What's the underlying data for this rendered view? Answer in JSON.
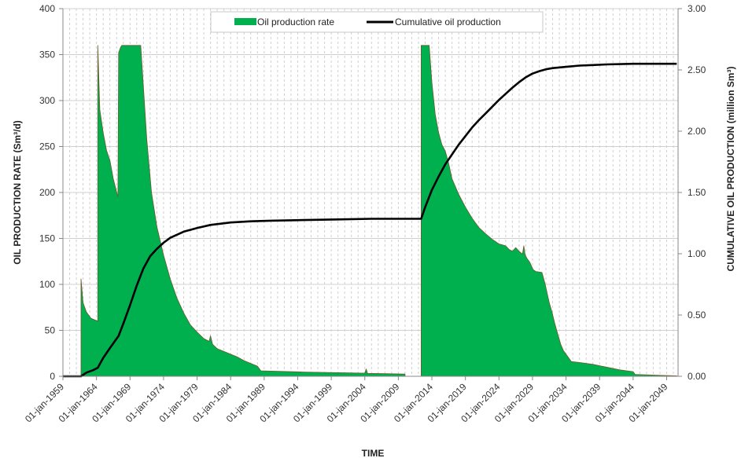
{
  "chart_data": {
    "type": "area",
    "xlabel": "TIME",
    "ylabel_left": "OIL PRODUCTION RATE (Sm³/d)",
    "ylabel_right": "CUMULATIVE OIL PRODUCTION (million Sm³)",
    "xlim": [
      1959.0,
      2050.7
    ],
    "ylim_left": [
      0,
      400
    ],
    "ylim_right": [
      0,
      3.0
    ],
    "grid": true,
    "legend_position": "top-center",
    "x_tick_values": [
      1959,
      1964,
      1969,
      1974,
      1979,
      1984,
      1989,
      1994,
      1999,
      2004,
      2009,
      2014,
      2019,
      2024,
      2029,
      2034,
      2039,
      2044,
      2049
    ],
    "x_tick_labels": [
      "01-jan-1959",
      "01-jan-1964",
      "01-jan-1969",
      "01-jan-1974",
      "01-jan-1979",
      "01-jan-1984",
      "01-jan-1989",
      "01-jan-1994",
      "01-jan-1999",
      "01-jan-2004",
      "01-jan-2009",
      "01-jan-2014",
      "01-jan-2019",
      "01-jan-2024",
      "01-jan-2029",
      "01-jan-2034",
      "01-jan-2039",
      "01-jan-2044",
      "01-jan-2049"
    ],
    "y_left_ticks": [
      0,
      50,
      100,
      150,
      200,
      250,
      300,
      350,
      400
    ],
    "y_left_tick_labels": [
      "0",
      "50",
      "100",
      "150",
      "200",
      "250",
      "300",
      "350",
      "400"
    ],
    "y_right_ticks": [
      0,
      0.5,
      1.0,
      1.5,
      2.0,
      2.5,
      3.0
    ],
    "y_right_tick_labels": [
      "0.00",
      "0.50",
      "1.00",
      "1.50",
      "2.00",
      "2.50",
      "3.00"
    ],
    "series": [
      {
        "name": "Oil production rate",
        "type": "area",
        "color": "#00b04f",
        "stroke": "#6b5a2a",
        "axis": "left",
        "segments": [
          [
            [
              1961.7,
              0
            ],
            [
              1961.7,
              106
            ],
            [
              1962.0,
              80
            ],
            [
              1962.5,
              70
            ],
            [
              1963.2,
              63
            ],
            [
              1964.2,
              60
            ],
            [
              1964.2,
              360
            ],
            [
              1964.5,
              290
            ],
            [
              1965.0,
              265
            ],
            [
              1965.5,
              246
            ],
            [
              1966.0,
              235
            ],
            [
              1966.5,
              215
            ],
            [
              1967.2,
              195
            ],
            [
              1967.3,
              352
            ],
            [
              1967.6,
              358
            ],
            [
              1967.8,
              360
            ],
            [
              1970.6,
              360
            ],
            [
              1971.5,
              258
            ],
            [
              1972.2,
              200
            ],
            [
              1973.0,
              163
            ],
            [
              1974.0,
              132
            ],
            [
              1975.0,
              106
            ],
            [
              1976.0,
              85
            ],
            [
              1977.0,
              69
            ],
            [
              1978.0,
              56
            ],
            [
              1979.0,
              48
            ],
            [
              1980.0,
              41
            ],
            [
              1980.8,
              38
            ],
            [
              1981.0,
              44
            ],
            [
              1981.3,
              35
            ],
            [
              1982.0,
              30
            ],
            [
              1983.0,
              27
            ],
            [
              1984.0,
              24
            ],
            [
              1985.0,
              21
            ],
            [
              1986.0,
              17
            ],
            [
              1987.0,
              14
            ],
            [
              1988.0,
              11
            ],
            [
              1988.5,
              6
            ],
            [
              1990.0,
              5.6
            ],
            [
              1995.0,
              4.6
            ],
            [
              2000.0,
              3.9
            ],
            [
              2004.0,
              3.4
            ],
            [
              2004.2,
              8
            ],
            [
              2004.4,
              3.2
            ],
            [
              2007.0,
              2.8
            ],
            [
              2010.0,
              2.4
            ],
            [
              2010.0,
              0
            ]
          ],
          [
            [
              2012.4,
              0
            ],
            [
              2012.4,
              360
            ],
            [
              2013.6,
              360
            ],
            [
              2014.0,
              320
            ],
            [
              2014.5,
              285
            ],
            [
              2015.0,
              265
            ],
            [
              2015.5,
              252
            ],
            [
              2016.0,
              245
            ],
            [
              2016.5,
              232
            ],
            [
              2017.0,
              215
            ],
            [
              2018.0,
              198
            ],
            [
              2019.0,
              184
            ],
            [
              2020.0,
              172
            ],
            [
              2021.0,
              162
            ],
            [
              2022.0,
              155
            ],
            [
              2023.0,
              149
            ],
            [
              2024.0,
              144
            ],
            [
              2025.0,
              142
            ],
            [
              2025.5,
              138
            ],
            [
              2026.0,
              136
            ],
            [
              2026.5,
              140
            ],
            [
              2027.0,
              136
            ],
            [
              2027.5,
              133
            ],
            [
              2027.7,
              142
            ],
            [
              2027.9,
              132
            ],
            [
              2028.2,
              128
            ],
            [
              2028.6,
              124
            ],
            [
              2029.1,
              116
            ],
            [
              2029.5,
              114
            ],
            [
              2030.4,
              113
            ],
            [
              2030.6,
              108
            ],
            [
              2030.9,
              100
            ],
            [
              2031.2,
              90
            ],
            [
              2031.5,
              80
            ],
            [
              2031.9,
              70
            ],
            [
              2032.3,
              58
            ],
            [
              2032.8,
              45
            ],
            [
              2033.2,
              35
            ],
            [
              2033.6,
              28
            ],
            [
              2034.0,
              24
            ],
            [
              2034.4,
              20
            ],
            [
              2034.8,
              16
            ],
            [
              2036.0,
              15
            ],
            [
              2038.0,
              13
            ],
            [
              2040.0,
              10
            ],
            [
              2042.0,
              7
            ],
            [
              2044.0,
              5
            ],
            [
              2044.3,
              2
            ],
            [
              2046.0,
              1.5
            ],
            [
              2048.0,
              1
            ],
            [
              2050.5,
              0.5
            ],
            [
              2050.5,
              0
            ]
          ]
        ]
      },
      {
        "name": "Cumulative oil production",
        "type": "line",
        "color": "#000000",
        "axis": "right",
        "points": [
          [
            1959.0,
            0.0
          ],
          [
            1961.7,
            0.0
          ],
          [
            1962.5,
            0.03
          ],
          [
            1963.5,
            0.05
          ],
          [
            1964.2,
            0.07
          ],
          [
            1965.0,
            0.15
          ],
          [
            1966.0,
            0.23
          ],
          [
            1967.3,
            0.33
          ],
          [
            1968.0,
            0.43
          ],
          [
            1969.0,
            0.58
          ],
          [
            1970.0,
            0.74
          ],
          [
            1971.0,
            0.88
          ],
          [
            1972.0,
            0.98
          ],
          [
            1973.0,
            1.04
          ],
          [
            1974.0,
            1.09
          ],
          [
            1975.0,
            1.13
          ],
          [
            1977.0,
            1.18
          ],
          [
            1979.0,
            1.21
          ],
          [
            1981.0,
            1.235
          ],
          [
            1984.0,
            1.255
          ],
          [
            1987.0,
            1.265
          ],
          [
            1990.0,
            1.27
          ],
          [
            1995.0,
            1.275
          ],
          [
            2000.0,
            1.28
          ],
          [
            2005.0,
            1.285
          ],
          [
            2012.4,
            1.285
          ],
          [
            2013.0,
            1.38
          ],
          [
            2014.0,
            1.52
          ],
          [
            2015.0,
            1.63
          ],
          [
            2016.0,
            1.73
          ],
          [
            2017.0,
            1.81
          ],
          [
            2018.0,
            1.89
          ],
          [
            2019.0,
            1.96
          ],
          [
            2020.0,
            2.03
          ],
          [
            2021.0,
            2.09
          ],
          [
            2022.0,
            2.145
          ],
          [
            2023.0,
            2.2
          ],
          [
            2024.0,
            2.255
          ],
          [
            2025.0,
            2.305
          ],
          [
            2026.0,
            2.355
          ],
          [
            2027.0,
            2.4
          ],
          [
            2028.0,
            2.44
          ],
          [
            2029.0,
            2.47
          ],
          [
            2030.0,
            2.49
          ],
          [
            2031.0,
            2.505
          ],
          [
            2032.0,
            2.515
          ],
          [
            2034.0,
            2.525
          ],
          [
            2036.0,
            2.535
          ],
          [
            2038.0,
            2.54
          ],
          [
            2040.0,
            2.545
          ],
          [
            2044.0,
            2.55
          ],
          [
            2050.5,
            2.55
          ]
        ]
      }
    ]
  }
}
